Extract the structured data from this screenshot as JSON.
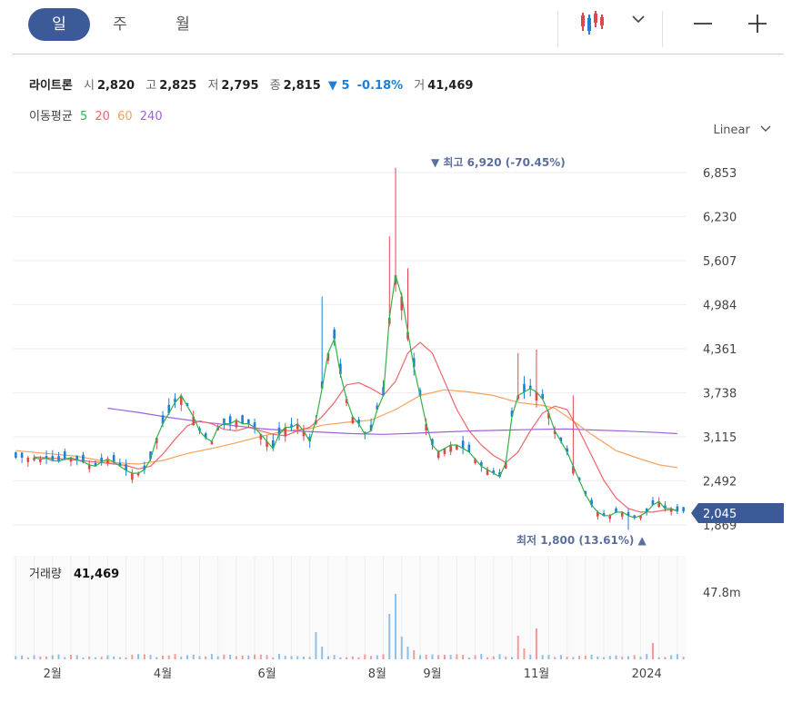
{
  "tabs": [
    {
      "label": "일"
    },
    {
      "label": "주"
    },
    {
      "label": "월"
    }
  ],
  "stock": {
    "name": "라이트론",
    "open_label": "시",
    "open": "2,820",
    "high_label": "고",
    "high": "2,825",
    "low_label": "저",
    "low": "2,795",
    "close_label": "종",
    "close": "2,815",
    "change": "▼ 5",
    "change_pct": "-0.18%",
    "volume_label": "거",
    "volume": "41,469"
  },
  "ma": {
    "label": "이동평균",
    "p5": "5",
    "p20": "20",
    "p60": "60",
    "p240": "240"
  },
  "scale_label": "Linear",
  "volume_panel": {
    "label": "거래량",
    "value": "41,469",
    "axis_label": "47.8m"
  },
  "colors": {
    "up": "#e0474c",
    "down": "#1e7fd6",
    "ma5": "#2fb24a",
    "ma20": "#f0656b",
    "ma60": "#f4a259",
    "ma240": "#9f5fe0",
    "badge": "#3d5a98",
    "accent": "#3d5a98"
  },
  "chart_data": {
    "type": "candlestick",
    "y_ticks": [
      "6,853",
      "6,230",
      "5,607",
      "4,984",
      "4,361",
      "3,738",
      "3,115",
      "2,492",
      "1,869"
    ],
    "ylim": [
      1800,
      6920
    ],
    "x_ticks": [
      "2월",
      "4월",
      "6월",
      "8월",
      "9월",
      "11월",
      "2024"
    ],
    "current_price": "2,045",
    "max_annotation": "최고 6,920 (-70.45%)",
    "min_annotation": "최저 1,800 (13.61%)",
    "max_marker": "▼",
    "min_marker": "▲",
    "series": [
      {
        "name": "5",
        "points": [
          [
            3,
            2820
          ],
          [
            4,
            2800
          ],
          [
            5,
            2810
          ],
          [
            6,
            2780
          ],
          [
            7,
            2770
          ],
          [
            8,
            2800
          ],
          [
            9,
            2820
          ],
          [
            10,
            2790
          ],
          [
            11,
            2760
          ],
          [
            12,
            2720
          ],
          [
            13,
            2700
          ],
          [
            14,
            2760
          ],
          [
            15,
            2800
          ],
          [
            16,
            2760
          ],
          [
            17,
            2700
          ],
          [
            18,
            2640
          ],
          [
            19,
            2600
          ],
          [
            20,
            2600
          ],
          [
            21,
            2650
          ],
          [
            22,
            2800
          ],
          [
            23,
            3100
          ],
          [
            24,
            3300
          ],
          [
            25,
            3450
          ],
          [
            26,
            3600
          ],
          [
            27,
            3700
          ],
          [
            28,
            3550
          ],
          [
            29,
            3400
          ],
          [
            30,
            3200
          ],
          [
            31,
            3100
          ],
          [
            32,
            3050
          ],
          [
            33,
            3250
          ],
          [
            34,
            3300
          ],
          [
            35,
            3300
          ],
          [
            36,
            3350
          ],
          [
            37,
            3300
          ],
          [
            38,
            3300
          ],
          [
            39,
            3250
          ],
          [
            40,
            3150
          ],
          [
            41,
            3050
          ],
          [
            42,
            2950
          ],
          [
            43,
            3150
          ],
          [
            44,
            3250
          ],
          [
            45,
            3250
          ],
          [
            46,
            3300
          ],
          [
            47,
            3200
          ],
          [
            48,
            3050
          ],
          [
            49,
            3350
          ],
          [
            50,
            3800
          ],
          [
            51,
            4300
          ],
          [
            52,
            4500
          ],
          [
            53,
            4000
          ],
          [
            54,
            3650
          ],
          [
            55,
            3400
          ],
          [
            56,
            3300
          ],
          [
            57,
            3150
          ],
          [
            58,
            3200
          ],
          [
            59,
            3500
          ],
          [
            60,
            3700
          ],
          [
            61,
            4800
          ],
          [
            62,
            5400
          ],
          [
            63,
            5100
          ],
          [
            64,
            4600
          ],
          [
            65,
            4100
          ],
          [
            66,
            3700
          ],
          [
            67,
            3300
          ],
          [
            68,
            3000
          ],
          [
            69,
            2900
          ],
          [
            70,
            2950
          ],
          [
            71,
            3000
          ],
          [
            72,
            3000
          ],
          [
            73,
            2950
          ],
          [
            74,
            2900
          ],
          [
            75,
            2800
          ],
          [
            76,
            2700
          ],
          [
            77,
            2650
          ],
          [
            78,
            2600
          ],
          [
            79,
            2550
          ],
          [
            80,
            2750
          ],
          [
            81,
            3400
          ],
          [
            82,
            3700
          ],
          [
            83,
            3750
          ],
          [
            84,
            3800
          ],
          [
            85,
            3750
          ],
          [
            86,
            3650
          ],
          [
            87,
            3450
          ],
          [
            88,
            3200
          ],
          [
            89,
            3050
          ],
          [
            90,
            2900
          ],
          [
            91,
            2700
          ],
          [
            92,
            2500
          ],
          [
            93,
            2300
          ],
          [
            94,
            2150
          ],
          [
            95,
            2050
          ],
          [
            96,
            2000
          ],
          [
            97,
            2000
          ],
          [
            98,
            2050
          ],
          [
            99,
            2050
          ],
          [
            100,
            2000
          ],
          [
            101,
            1970
          ],
          [
            102,
            2000
          ],
          [
            103,
            2050
          ],
          [
            104,
            2150
          ],
          [
            105,
            2200
          ],
          [
            106,
            2100
          ],
          [
            107,
            2100
          ],
          [
            108,
            2060
          ]
        ]
      },
      {
        "name": "20",
        "points": [
          [
            3,
            2830
          ],
          [
            8,
            2800
          ],
          [
            13,
            2760
          ],
          [
            18,
            2710
          ],
          [
            20,
            2660
          ],
          [
            22,
            2700
          ],
          [
            24,
            2870
          ],
          [
            26,
            3080
          ],
          [
            28,
            3270
          ],
          [
            30,
            3340
          ],
          [
            32,
            3300
          ],
          [
            34,
            3220
          ],
          [
            36,
            3200
          ],
          [
            38,
            3250
          ],
          [
            40,
            3200
          ],
          [
            42,
            3150
          ],
          [
            44,
            3130
          ],
          [
            46,
            3200
          ],
          [
            48,
            3250
          ],
          [
            50,
            3400
          ],
          [
            52,
            3600
          ],
          [
            54,
            3850
          ],
          [
            56,
            3880
          ],
          [
            58,
            3800
          ],
          [
            60,
            3700
          ],
          [
            62,
            3900
          ],
          [
            64,
            4300
          ],
          [
            66,
            4450
          ],
          [
            68,
            4300
          ],
          [
            70,
            3900
          ],
          [
            72,
            3500
          ],
          [
            74,
            3200
          ],
          [
            76,
            3000
          ],
          [
            78,
            2850
          ],
          [
            80,
            2750
          ],
          [
            82,
            2900
          ],
          [
            84,
            3200
          ],
          [
            86,
            3450
          ],
          [
            88,
            3550
          ],
          [
            90,
            3500
          ],
          [
            92,
            3200
          ],
          [
            94,
            2850
          ],
          [
            96,
            2500
          ],
          [
            98,
            2250
          ],
          [
            100,
            2100
          ],
          [
            102,
            2050
          ],
          [
            104,
            2050
          ],
          [
            106,
            2080
          ],
          [
            108,
            2080
          ]
        ]
      },
      {
        "name": "60",
        "points": [
          [
            0,
            2920
          ],
          [
            5,
            2880
          ],
          [
            10,
            2840
          ],
          [
            15,
            2760
          ],
          [
            18,
            2740
          ],
          [
            20,
            2730
          ],
          [
            24,
            2780
          ],
          [
            28,
            2880
          ],
          [
            32,
            2950
          ],
          [
            36,
            3030
          ],
          [
            40,
            3120
          ],
          [
            44,
            3200
          ],
          [
            48,
            3230
          ],
          [
            50,
            3280
          ],
          [
            54,
            3320
          ],
          [
            58,
            3350
          ],
          [
            62,
            3500
          ],
          [
            66,
            3700
          ],
          [
            70,
            3780
          ],
          [
            74,
            3750
          ],
          [
            78,
            3700
          ],
          [
            82,
            3600
          ],
          [
            86,
            3560
          ],
          [
            88,
            3520
          ],
          [
            90,
            3400
          ],
          [
            94,
            3150
          ],
          [
            98,
            2920
          ],
          [
            102,
            2800
          ],
          [
            105,
            2720
          ],
          [
            108,
            2680
          ]
        ]
      },
      {
        "name": "240",
        "points": [
          [
            15,
            3520
          ],
          [
            20,
            3460
          ],
          [
            25,
            3390
          ],
          [
            30,
            3330
          ],
          [
            35,
            3280
          ],
          [
            40,
            3230
          ],
          [
            45,
            3200
          ],
          [
            50,
            3180
          ],
          [
            55,
            3160
          ],
          [
            60,
            3150
          ],
          [
            65,
            3165
          ],
          [
            70,
            3185
          ],
          [
            75,
            3200
          ],
          [
            80,
            3210
          ],
          [
            85,
            3220
          ],
          [
            90,
            3225
          ],
          [
            95,
            3210
          ],
          [
            100,
            3195
          ],
          [
            105,
            3175
          ],
          [
            108,
            3160
          ]
        ]
      }
    ]
  }
}
